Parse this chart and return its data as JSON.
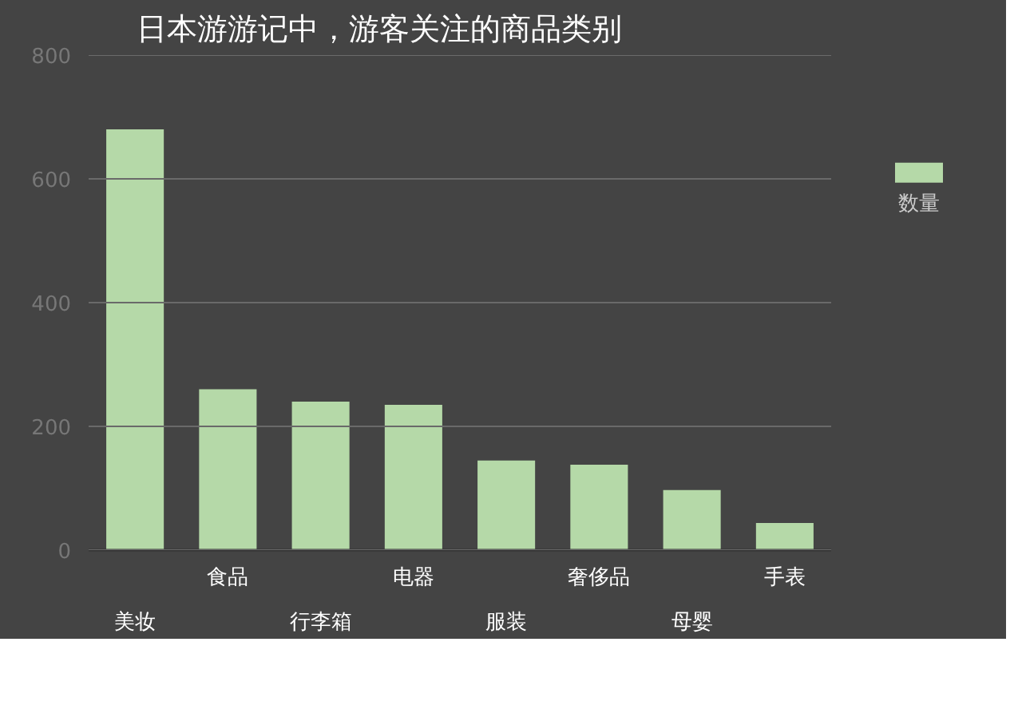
{
  "chart_data": {
    "type": "bar",
    "title": "日本游游记中，游客关注的商品类别",
    "categories": [
      "美妆",
      "食品",
      "行李箱",
      "电器",
      "服装",
      "奢侈品",
      "母婴",
      "手表"
    ],
    "series": [
      {
        "name": "数量",
        "color": "#b5d9a8",
        "values": [
          680,
          260,
          240,
          235,
          145,
          138,
          97,
          44
        ]
      }
    ],
    "ylim": [
      0,
      800
    ],
    "yticks": [
      0,
      200,
      400,
      600,
      800
    ],
    "grid": "y",
    "legend": "top right"
  }
}
